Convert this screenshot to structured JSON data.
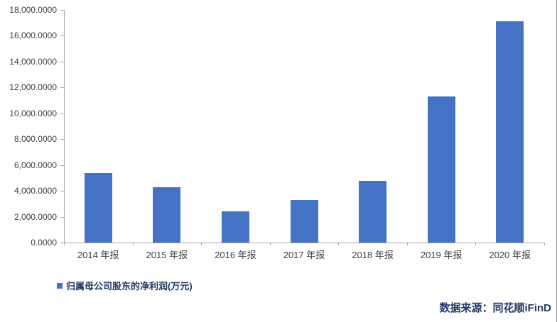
{
  "chart_data": {
    "type": "bar",
    "title": "",
    "xlabel": "",
    "ylabel": "",
    "categories": [
      "2014 年报",
      "2015 年报",
      "2016 年报",
      "2017 年报",
      "2018 年报",
      "2019 年报",
      "2020 年报"
    ],
    "series": [
      {
        "name": "归属母公司股东的净利润(万元)",
        "values": [
          5400,
          4300,
          2400,
          3300,
          4800,
          11300,
          17100
        ]
      }
    ],
    "ylim": [
      0,
      18000
    ],
    "yticks": [
      {
        "value": 0,
        "label": "0.0000"
      },
      {
        "value": 2000,
        "label": "2,000.0000"
      },
      {
        "value": 4000,
        "label": "4,000.0000"
      },
      {
        "value": 6000,
        "label": "6,000.0000"
      },
      {
        "value": 8000,
        "label": "8,000.0000"
      },
      {
        "value": 10000,
        "label": "10,000.0000"
      },
      {
        "value": 12000,
        "label": "12,000.0000"
      },
      {
        "value": 14000,
        "label": "14,000.0000"
      },
      {
        "value": 16000,
        "label": "16,000.0000"
      },
      {
        "value": 18000,
        "label": "18,000.0000"
      }
    ],
    "grid": false,
    "legend_position": "bottom-left"
  },
  "legend": {
    "label": "归属母公司股东的净利润(万元)"
  },
  "footer": {
    "source_label": "数据来源：同花顺iFinD"
  },
  "colors": {
    "bar": "#4472C4",
    "axis_line": "#a6a6a6",
    "axis_text": "#404040",
    "navy_text": "#1F3864"
  }
}
